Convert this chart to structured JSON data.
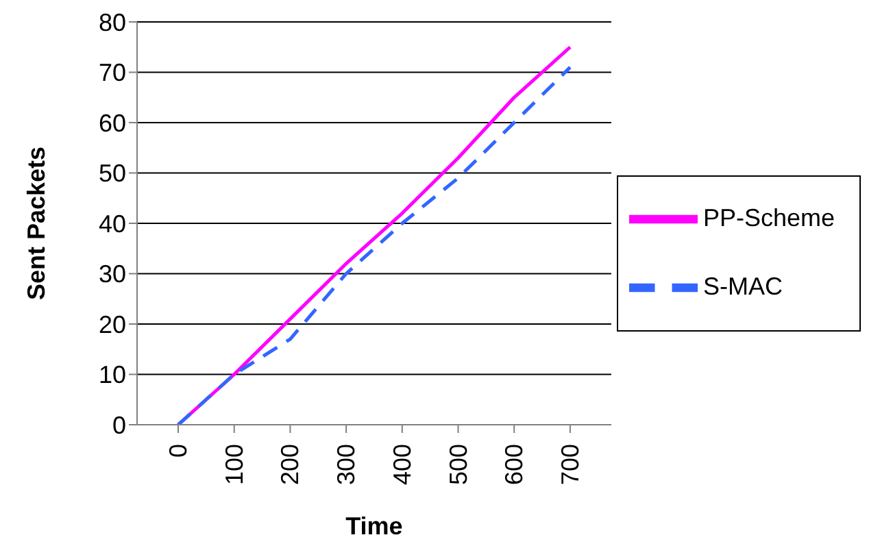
{
  "chart_data": {
    "type": "line",
    "xlabel": "Time",
    "ylabel": "Sent Packets",
    "categories": [
      "0",
      "100",
      "200",
      "300",
      "400",
      "500",
      "600",
      "700"
    ],
    "series": [
      {
        "name": "PP-Scheme",
        "color": "#ff00ff",
        "line_style": "solid",
        "values": [
          0,
          10,
          21,
          32,
          42,
          53,
          65,
          75
        ]
      },
      {
        "name": "S-MAC",
        "color": "#3366ff",
        "line_style": "dashed",
        "values": [
          0,
          10,
          17,
          30,
          40,
          49,
          60,
          71
        ]
      }
    ],
    "ylim": [
      0,
      80
    ],
    "yticks": [
      0,
      10,
      20,
      30,
      40,
      50,
      60,
      70,
      80
    ],
    "grid": "y",
    "legend": "right",
    "marker": "none"
  }
}
